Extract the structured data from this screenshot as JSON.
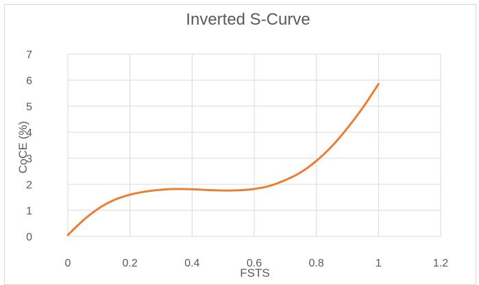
{
  "chart_data": {
    "type": "line",
    "title": "Inverted S-Curve",
    "xlabel": "FSTS",
    "ylabel": "CoCE (%)",
    "xlim": [
      0,
      1.2
    ],
    "ylim": [
      0,
      7
    ],
    "x_ticks": [
      "0",
      "0.2",
      "0.4",
      "0.6",
      "0.8",
      "1",
      "1.2"
    ],
    "y_ticks": [
      "0",
      "1",
      "2",
      "3",
      "4",
      "5",
      "6",
      "7"
    ],
    "grid": true,
    "legend": "none",
    "series": [
      {
        "color": "#ED7D31",
        "x": [
          0,
          0.05,
          0.1,
          0.15,
          0.2,
          0.25,
          0.3,
          0.35,
          0.4,
          0.45,
          0.5,
          0.55,
          0.6,
          0.65,
          0.7,
          0.75,
          0.8,
          0.85,
          0.9,
          0.95,
          1.0
        ],
        "y": [
          0.05,
          0.62,
          1.08,
          1.4,
          1.6,
          1.72,
          1.79,
          1.82,
          1.81,
          1.78,
          1.76,
          1.77,
          1.82,
          1.94,
          2.16,
          2.46,
          2.9,
          3.46,
          4.16,
          4.95,
          5.85
        ]
      }
    ]
  }
}
